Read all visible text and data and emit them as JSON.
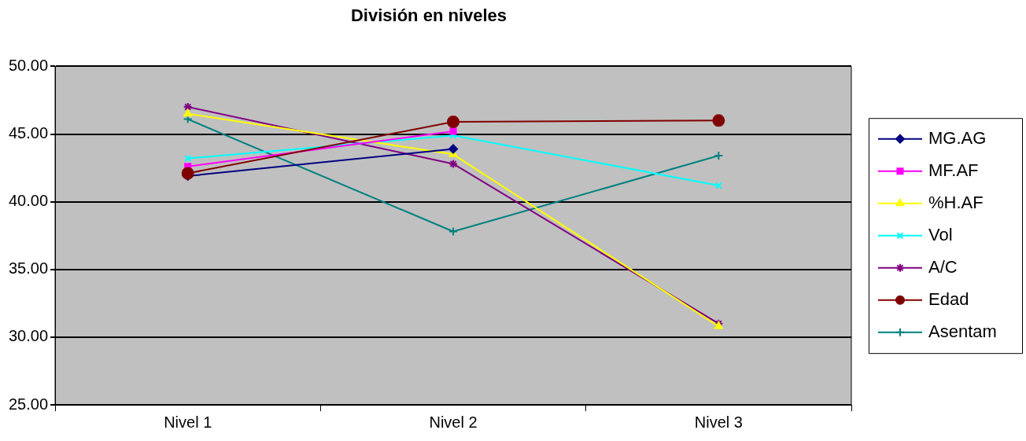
{
  "chart_data": {
    "type": "line",
    "title": "División en niveles",
    "categories": [
      "Nivel 1",
      "Nivel 2",
      "Nivel 3"
    ],
    "ylim": [
      25,
      50
    ],
    "yticks": [
      {
        "value": 25,
        "label": "25.00"
      },
      {
        "value": 30,
        "label": "30.00"
      },
      {
        "value": 35,
        "label": "35.00"
      },
      {
        "value": 40,
        "label": "40.00"
      },
      {
        "value": 45,
        "label": "45.00"
      },
      {
        "value": 50,
        "label": "50.00"
      }
    ],
    "grid": "y",
    "legend": "right",
    "series": [
      {
        "name": "MG.AG",
        "color": "#000080",
        "marker": "diamond",
        "values": [
          41.9,
          43.9,
          null
        ]
      },
      {
        "name": "MF.AF",
        "color": "#ff00ff",
        "marker": "square",
        "values": [
          42.6,
          45.2,
          null
        ]
      },
      {
        "name": "%H.AF",
        "color": "#ffff00",
        "marker": "triangle",
        "values": [
          46.5,
          43.5,
          30.8
        ]
      },
      {
        "name": "Vol",
        "color": "#00ffff",
        "marker": "cross",
        "values": [
          43.2,
          44.9,
          41.2
        ]
      },
      {
        "name": "A/C",
        "color": "#800080",
        "marker": "cross",
        "values": [
          47.0,
          42.8,
          31.0
        ]
      },
      {
        "name": "Edad",
        "color": "#800000",
        "marker": "circle",
        "values": [
          42.1,
          45.9,
          46.0
        ]
      },
      {
        "name": "Asentam",
        "color": "#008080",
        "marker": "plus",
        "values": [
          46.1,
          37.8,
          43.4
        ]
      }
    ]
  }
}
